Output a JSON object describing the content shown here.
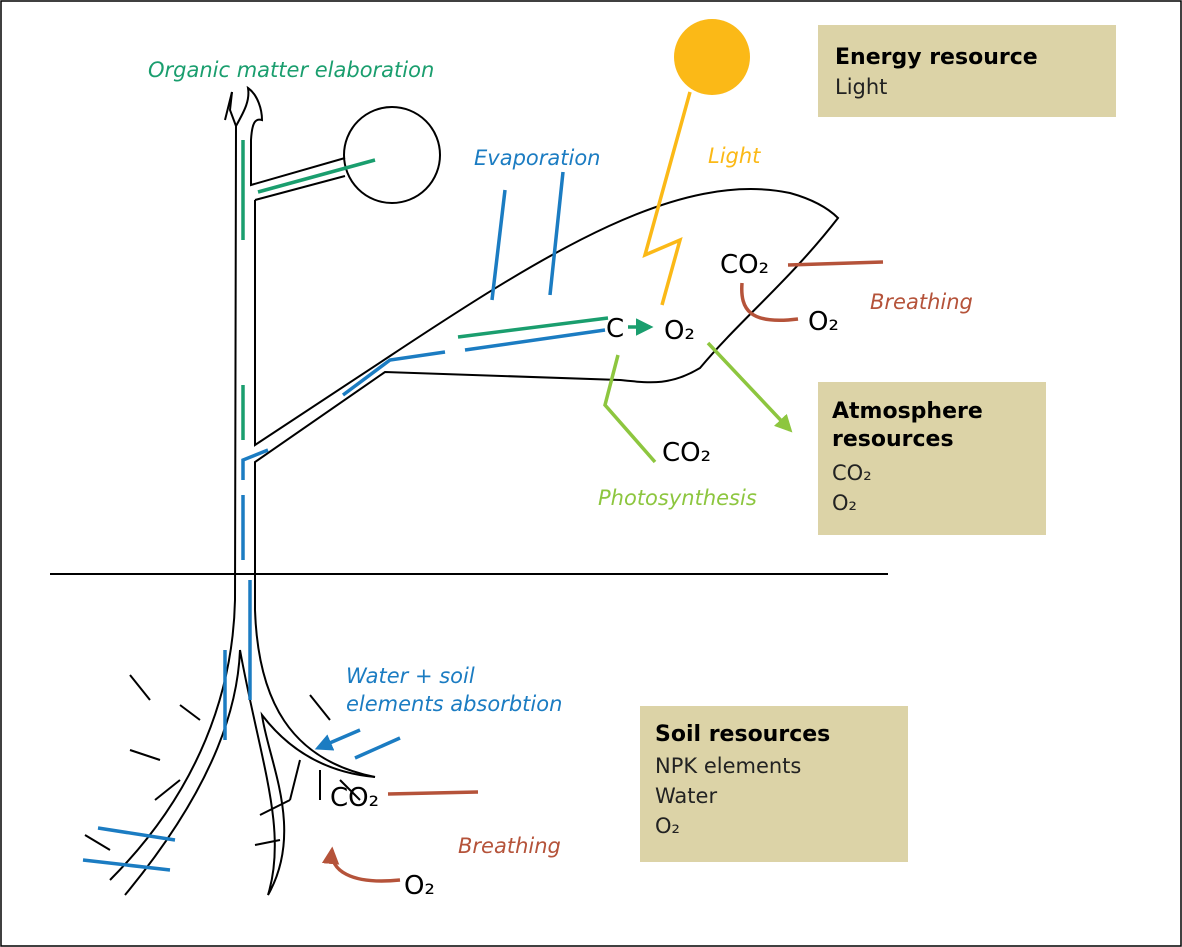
{
  "process_labels": {
    "organic_matter": "Organic matter elaboration",
    "evaporation": "Evaporation",
    "light": "Light",
    "leaf_breathing": "Breathing",
    "photosynthesis": "Photosynthesis",
    "absorption": [
      "Water + soil",
      "elements absorbtion"
    ],
    "root_breathing": "Breathing"
  },
  "molecules": {
    "leaf_co2_out": "CO₂",
    "leaf_o2_in": "O₂",
    "leaf_c": "C",
    "leaf_o2_out": "O₂",
    "leaf_co2_in": "CO₂",
    "root_co2": "CO₂",
    "root_o2": "O₂"
  },
  "resource_boxes": [
    {
      "title": [
        "Energy resource"
      ],
      "items": [
        "Light"
      ]
    },
    {
      "title": [
        "Atmosphere",
        "resources"
      ],
      "items": [
        "CO₂",
        "O₂"
      ]
    },
    {
      "title": [
        "Soil resources"
      ],
      "items": [
        "NPK elements",
        "Water",
        "O₂"
      ]
    }
  ]
}
